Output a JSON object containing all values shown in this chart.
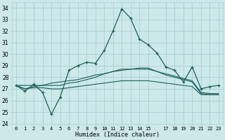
{
  "title": "",
  "xlabel": "Humidex (Indice chaleur)",
  "bg_color": "#cce8e8",
  "grid_color": "#aacfcf",
  "line_color": "#1a6060",
  "xlim": [
    -0.5,
    23.5
  ],
  "ylim": [
    24,
    34.5
  ],
  "yticks": [
    24,
    25,
    26,
    27,
    28,
    29,
    30,
    31,
    32,
    33,
    34
  ],
  "xticks": [
    0,
    1,
    2,
    3,
    4,
    5,
    6,
    7,
    8,
    9,
    10,
    11,
    12,
    13,
    14,
    15,
    17,
    18,
    19,
    20,
    21,
    22,
    23
  ],
  "xtick_labels": [
    "0",
    "1",
    "2",
    "3",
    "4",
    "5",
    "6",
    "7",
    "8",
    "9",
    "10",
    "11",
    "12",
    "13",
    "14",
    "15",
    "17",
    "18",
    "19",
    "20",
    "21",
    "22",
    "23"
  ],
  "series_main": [
    27.3,
    26.8,
    27.4,
    26.7,
    24.8,
    26.3,
    28.6,
    29.0,
    29.3,
    29.2,
    30.3,
    32.0,
    33.9,
    33.1,
    31.3,
    30.8,
    30.1,
    28.9,
    28.6,
    27.6,
    28.9,
    27.0,
    27.2,
    27.3
  ],
  "series2": [
    27.3,
    27.3,
    27.3,
    27.3,
    27.3,
    27.3,
    27.5,
    27.6,
    27.8,
    28.0,
    28.3,
    28.5,
    28.7,
    28.7,
    28.7,
    28.7,
    28.5,
    28.3,
    28.1,
    27.9,
    27.7,
    26.7,
    26.6,
    26.6
  ],
  "series3": [
    27.3,
    27.0,
    27.2,
    27.3,
    27.5,
    27.6,
    27.7,
    27.8,
    28.0,
    28.2,
    28.3,
    28.5,
    28.6,
    28.7,
    28.8,
    28.8,
    28.5,
    28.2,
    28.0,
    27.8,
    27.6,
    26.6,
    26.5,
    26.5
  ],
  "series4": [
    27.3,
    27.0,
    27.1,
    27.1,
    27.0,
    27.0,
    27.1,
    27.2,
    27.3,
    27.4,
    27.5,
    27.6,
    27.7,
    27.7,
    27.7,
    27.7,
    27.6,
    27.5,
    27.4,
    27.3,
    27.2,
    26.5,
    26.5,
    26.5
  ]
}
